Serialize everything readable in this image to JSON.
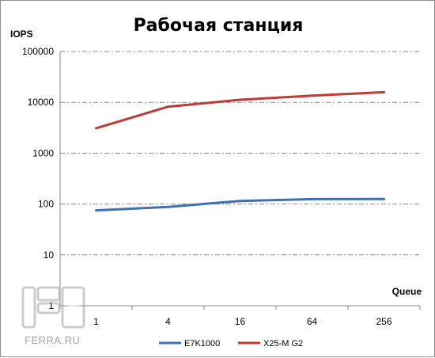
{
  "chart_data": {
    "type": "line",
    "title": "Рабочая станция",
    "ylabel": "IOPS",
    "xlabel": "Queue",
    "y_scale": "log",
    "ylim": [
      1,
      100000
    ],
    "yticks": [
      "1",
      "10",
      "100",
      "1000",
      "10000",
      "100000"
    ],
    "categories": [
      "1",
      "4",
      "16",
      "64",
      "256"
    ],
    "grid": "horizontal dashed",
    "legend_position": "bottom",
    "series": [
      {
        "name": "E7K1000",
        "color": "#3f6fb4",
        "values": [
          75,
          88,
          115,
          125,
          126
        ]
      },
      {
        "name": "X25-M G2",
        "color": "#be3b36",
        "values": [
          3100,
          8200,
          11200,
          13500,
          15800
        ]
      }
    ]
  },
  "watermark": {
    "text": "FERRA.RU",
    "logo_icon": "ferra-logo-icon"
  }
}
